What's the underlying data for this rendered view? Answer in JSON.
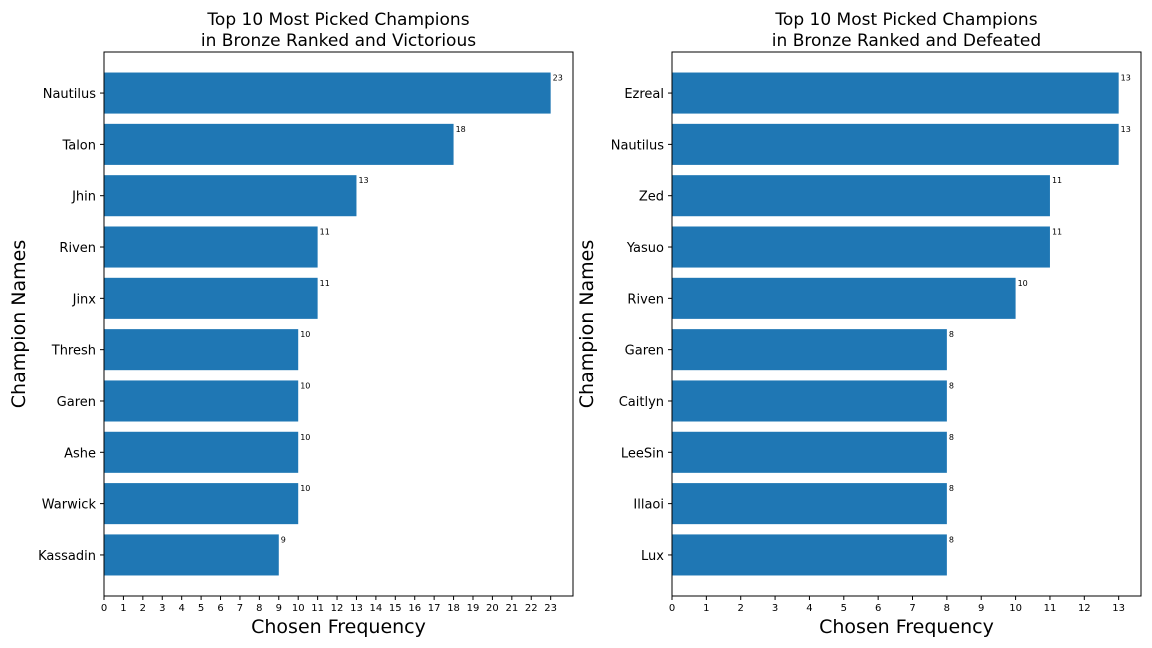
{
  "colors": {
    "bar": "#1f77b4",
    "axis": "#000000",
    "background": "#ffffff"
  },
  "chart_data": [
    {
      "type": "bar",
      "orientation": "horizontal",
      "title": [
        "Top 10 Most Picked Champions",
        "in Bronze Ranked and Victorious"
      ],
      "xlabel": "Chosen Frequency",
      "ylabel": "Champion Names",
      "xlim": [
        0,
        24.15
      ],
      "x_ticks": [
        0,
        1,
        2,
        3,
        4,
        5,
        6,
        7,
        8,
        9,
        10,
        11,
        12,
        13,
        14,
        15,
        16,
        17,
        18,
        19,
        20,
        21,
        22,
        23
      ],
      "grid": false,
      "categories": [
        "Nautilus",
        "Talon",
        "Jhin",
        "Riven",
        "Jinx",
        "Thresh",
        "Garen",
        "Ashe",
        "Warwick",
        "Kassadin"
      ],
      "values": [
        23,
        18,
        13,
        11,
        11,
        10,
        10,
        10,
        10,
        9
      ]
    },
    {
      "type": "bar",
      "orientation": "horizontal",
      "title": [
        "Top 10 Most Picked Champions",
        "in Bronze Ranked and Defeated"
      ],
      "xlabel": "Chosen Frequency",
      "ylabel": "Champion Names",
      "xlim": [
        0,
        13.65
      ],
      "x_ticks": [
        0,
        1,
        2,
        3,
        4,
        5,
        6,
        7,
        8,
        9,
        10,
        11,
        12,
        13
      ],
      "grid": false,
      "categories": [
        "Ezreal",
        "Nautilus",
        "Zed",
        "Yasuo",
        "Riven",
        "Garen",
        "Caitlyn",
        "LeeSin",
        "Illaoi",
        "Lux"
      ],
      "values": [
        13,
        13,
        11,
        11,
        10,
        8,
        8,
        8,
        8,
        8
      ]
    }
  ]
}
